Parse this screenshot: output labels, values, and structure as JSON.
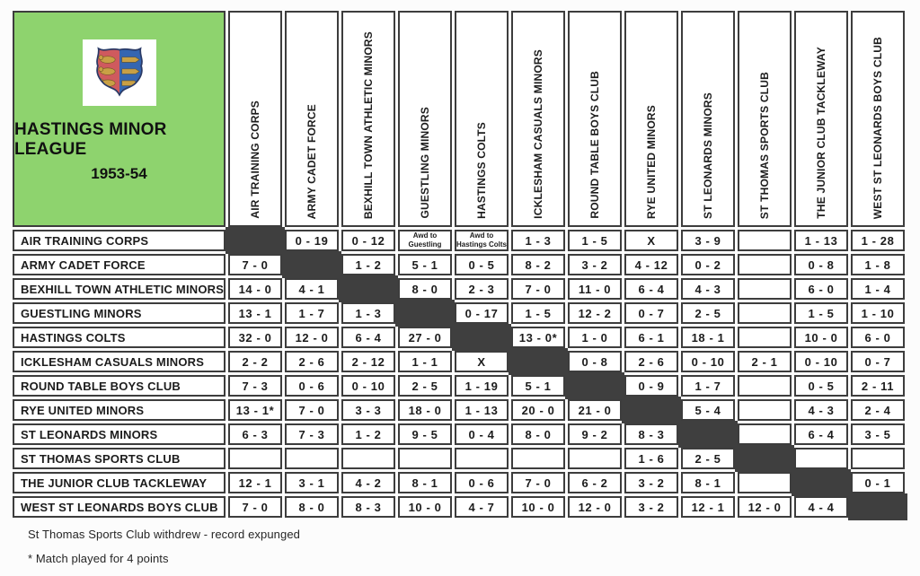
{
  "league": {
    "title": "HASTINGS MINOR LEAGUE",
    "season": "1953-54",
    "crest": "hastings-coat-of-arms"
  },
  "teams": [
    "AIR TRAINING CORPS",
    "ARMY CADET FORCE",
    "BEXHILL TOWN ATHLETIC MINORS",
    "GUESTLING MINORS",
    "HASTINGS COLTS",
    "ICKLESHAM CASUALS MINORS",
    "ROUND TABLE BOYS CLUB",
    "RYE UNITED MINORS",
    "ST LEONARDS MINORS",
    "ST THOMAS SPORTS CLUB",
    "THE JUNIOR CLUB TACKLEWAY",
    "WEST ST LEONARDS BOYS CLUB"
  ],
  "results": [
    [
      null,
      "0 - 19",
      "0 - 12",
      "Awd to\nGuestling",
      "Awd to\nHastings Colts",
      "1 - 3",
      "1 - 5",
      "X",
      "3 - 9",
      "",
      "1 - 13",
      "1 - 28"
    ],
    [
      "7 - 0",
      null,
      "1 - 2",
      "5 - 1",
      "0 - 5",
      "8 - 2",
      "3 - 2",
      "4 - 12",
      "0 - 2",
      "",
      "0 - 8",
      "1 - 8"
    ],
    [
      "14 - 0",
      "4 - 1",
      null,
      "8 - 0",
      "2 - 3",
      "7 - 0",
      "11 - 0",
      "6 - 4",
      "4 - 3",
      "",
      "6 - 0",
      "1 - 4"
    ],
    [
      "13 - 1",
      "1 - 7",
      "1 - 3",
      null,
      "0 - 17",
      "1 - 5",
      "12 - 2",
      "0 - 7",
      "2 - 5",
      "",
      "1 - 5",
      "1 - 10"
    ],
    [
      "32 - 0",
      "12 - 0",
      "6 - 4",
      "27 - 0",
      null,
      "13 - 0*",
      "1 - 0",
      "6 - 1",
      "18 - 1",
      "",
      "10 - 0",
      "6 - 0"
    ],
    [
      "2 - 2",
      "2 - 6",
      "2 - 12",
      "1 - 1",
      "X",
      null,
      "0 - 8",
      "2 - 6",
      "0 - 10",
      "2 - 1",
      "0 - 10",
      "0 - 7"
    ],
    [
      "7 - 3",
      "0 - 6",
      "0 - 10",
      "2 - 5",
      "1 - 19",
      "5 - 1",
      null,
      "0 - 9",
      "1 - 7",
      "",
      "0 - 5",
      "2 - 11"
    ],
    [
      "13 - 1*",
      "7 - 0",
      "3 - 3",
      "18 - 0",
      "1 - 13",
      "20 - 0",
      "21 - 0",
      null,
      "5 - 4",
      "",
      "4 - 3",
      "2 - 4"
    ],
    [
      "6 - 3",
      "7 - 3",
      "1 - 2",
      "9 - 5",
      "0 - 4",
      "8 - 0",
      "9 - 2",
      "8 - 3",
      null,
      "",
      "6 - 4",
      "3 - 5"
    ],
    [
      "",
      "",
      "",
      "",
      "",
      "",
      "",
      "1 - 6",
      "2 - 5",
      null,
      "",
      ""
    ],
    [
      "12 - 1",
      "3 - 1",
      "4 - 2",
      "8 - 1",
      "0 - 6",
      "7 - 0",
      "6 - 2",
      "3 - 2",
      "8 - 1",
      "",
      null,
      "0 - 1"
    ],
    [
      "7 - 0",
      "8 - 0",
      "8 - 3",
      "10 - 0",
      "4 - 7",
      "10 - 0",
      "12 - 0",
      "3 - 2",
      "12 - 1",
      "12 - 0",
      "4 - 4",
      null
    ]
  ],
  "notes": [
    "St Thomas Sports Club withdrew - record expunged",
    "* Match played for 4 points"
  ],
  "colors": {
    "header_green": "#8ed36e",
    "grid_line": "#3d3d3d",
    "diagonal_fill": "#3f3f3f",
    "crest_red": "#cf5a5e",
    "crest_blue": "#3566b2",
    "crest_gold": "#c9a045",
    "crest_outline": "#2a3a66"
  }
}
